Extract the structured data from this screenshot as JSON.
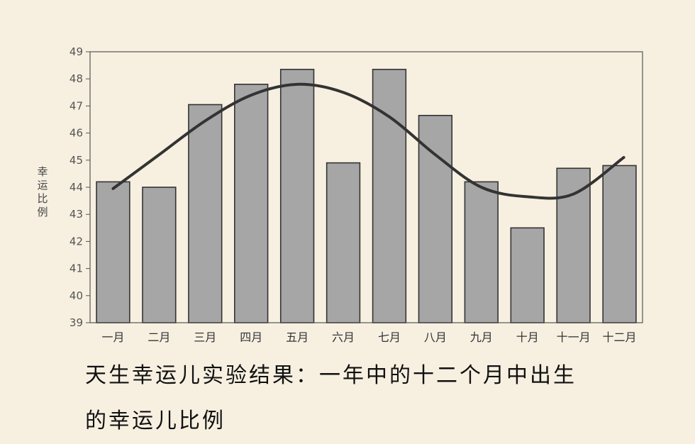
{
  "chart_data": {
    "type": "bar",
    "categories": [
      "一月",
      "二月",
      "三月",
      "四月",
      "五月",
      "六月",
      "七月",
      "八月",
      "九月",
      "十月",
      "十一月",
      "十二月"
    ],
    "values": [
      44.2,
      44.0,
      47.05,
      47.8,
      48.35,
      44.9,
      48.35,
      46.65,
      44.2,
      42.5,
      44.7,
      44.8
    ],
    "trend": {
      "type": "line",
      "x": [
        1,
        2,
        3,
        4,
        5,
        6,
        7,
        8,
        9,
        10,
        11,
        12
      ],
      "y": [
        43.95,
        45.2,
        46.45,
        47.4,
        47.8,
        47.5,
        46.6,
        45.2,
        44.0,
        43.65,
        43.75,
        45.1
      ]
    },
    "ylabel": "幸运比例",
    "ylim": [
      39,
      49
    ],
    "yticks": [
      39,
      40,
      41,
      42,
      43,
      44,
      45,
      46,
      47,
      48,
      49
    ],
    "colors": {
      "bar_fill": "#a6a6a6",
      "bar_stroke": "#333333",
      "trend_line": "#333333",
      "background": "#f7f0e1"
    }
  },
  "caption": {
    "line1": "天生幸运儿实验结果：一年中的十二个月中出生",
    "line2": "的幸运儿比例"
  }
}
